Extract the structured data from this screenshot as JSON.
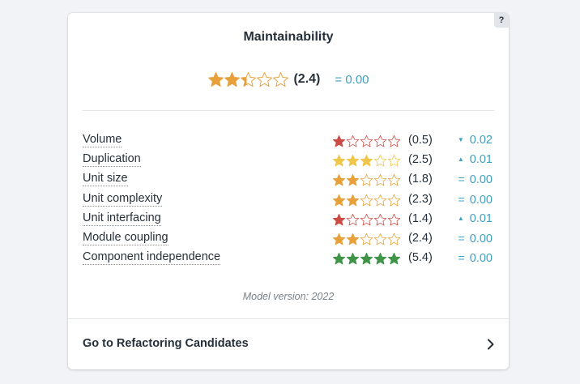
{
  "card": {
    "title": "Maintainability",
    "help_label": "?",
    "overall": {
      "stars": 2.4,
      "color": "#e8a03a",
      "score": "(2.4)",
      "delta_symbol": "=",
      "delta_value": "0.00"
    },
    "metrics": [
      {
        "label": "Volume",
        "stars": 1,
        "color": "#cc4b44",
        "score": "(0.5)",
        "trend": "down",
        "delta": "0.02"
      },
      {
        "label": "Duplication",
        "stars": 3,
        "color": "#eec74a",
        "score": "(2.5)",
        "trend": "up",
        "delta": "0.01"
      },
      {
        "label": "Unit size",
        "stars": 2,
        "color": "#e8a03a",
        "score": "(1.8)",
        "trend": "equal",
        "delta": "0.00"
      },
      {
        "label": "Unit complexity",
        "stars": 2,
        "color": "#e8a03a",
        "score": "(2.3)",
        "trend": "equal",
        "delta": "0.00"
      },
      {
        "label": "Unit interfacing",
        "stars": 1,
        "color": "#cc4b44",
        "score": "(1.4)",
        "trend": "up",
        "delta": "0.01"
      },
      {
        "label": "Module coupling",
        "stars": 2,
        "color": "#e8a03a",
        "score": "(2.4)",
        "trend": "equal",
        "delta": "0.00"
      },
      {
        "label": "Component independence",
        "stars": 5,
        "color": "#3f9448",
        "score": "(5.4)",
        "trend": "equal",
        "delta": "0.00"
      }
    ],
    "model_version": "Model version: 2022",
    "footer_link": "Go to Refactoring Candidates"
  },
  "icons": {
    "help": "question-mark-icon",
    "chevron": "chevron-right-icon",
    "trend_up": "triangle-up-icon",
    "trend_down": "triangle-down-icon",
    "trend_equal": "equals-icon"
  },
  "colors": {
    "delta": "#3f9fc0",
    "page_background": "#f1f3f6"
  }
}
